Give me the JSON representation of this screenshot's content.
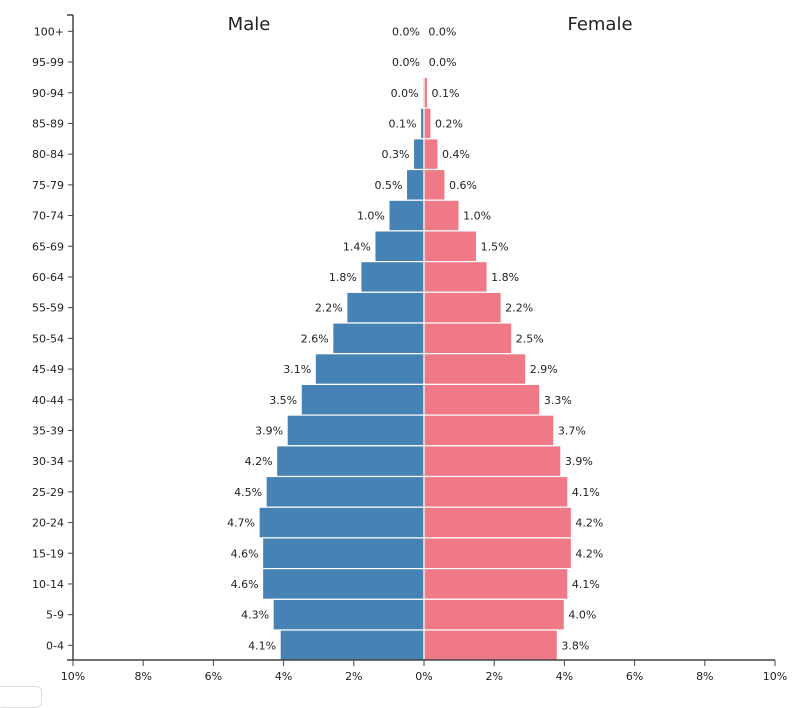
{
  "chart_data": {
    "type": "bar",
    "orientation": "horizontal-pyramid",
    "titles": {
      "male": "Male",
      "female": "Female"
    },
    "categories": [
      "100+",
      "95-99",
      "90-94",
      "85-89",
      "80-84",
      "75-79",
      "70-74",
      "65-69",
      "60-64",
      "55-59",
      "50-54",
      "45-49",
      "40-44",
      "35-39",
      "30-34",
      "25-29",
      "20-24",
      "15-19",
      "10-14",
      "5-9",
      "0-4"
    ],
    "series": [
      {
        "name": "Male",
        "color": "#4682b4",
        "values": [
          0.0,
          0.0,
          0.04,
          0.1,
          0.3,
          0.5,
          1.0,
          1.4,
          1.8,
          2.2,
          2.6,
          3.1,
          3.5,
          3.9,
          4.2,
          4.5,
          4.7,
          4.6,
          4.6,
          4.3,
          4.1
        ],
        "labels": [
          "0.0%",
          "0.0%",
          "0.0%",
          "0.1%",
          "0.3%",
          "0.5%",
          "1.0%",
          "1.4%",
          "1.8%",
          "2.2%",
          "2.6%",
          "3.1%",
          "3.5%",
          "3.9%",
          "4.2%",
          "4.5%",
          "4.7%",
          "4.6%",
          "4.6%",
          "4.3%",
          "4.1%"
        ]
      },
      {
        "name": "Female",
        "color": "#ef7986",
        "values": [
          0.01,
          0.02,
          0.1,
          0.2,
          0.4,
          0.6,
          1.0,
          1.5,
          1.8,
          2.2,
          2.5,
          2.9,
          3.3,
          3.7,
          3.9,
          4.1,
          4.2,
          4.2,
          4.1,
          4.0,
          3.8
        ],
        "labels": [
          "0.0%",
          "0.0%",
          "0.1%",
          "0.2%",
          "0.4%",
          "0.6%",
          "1.0%",
          "1.5%",
          "1.8%",
          "2.2%",
          "2.5%",
          "2.9%",
          "3.3%",
          "3.7%",
          "3.9%",
          "4.1%",
          "4.2%",
          "4.2%",
          "4.1%",
          "4.0%",
          "3.8%"
        ]
      }
    ],
    "xticks": [
      "10%",
      "8%",
      "6%",
      "4%",
      "2%",
      "0%",
      "2%",
      "4%",
      "6%",
      "8%",
      "10%"
    ],
    "xlim": [
      -10,
      10
    ],
    "grid": false
  }
}
